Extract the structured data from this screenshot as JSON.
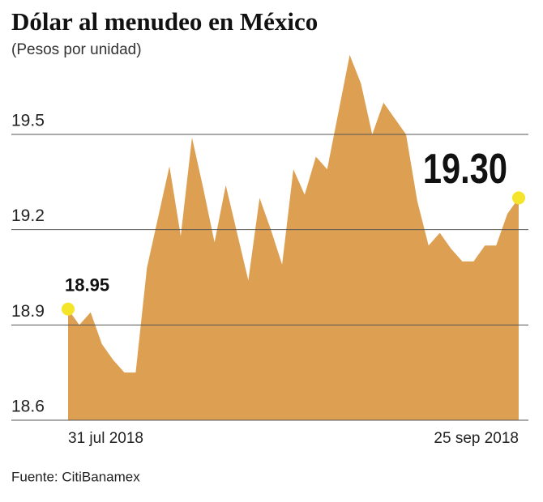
{
  "chart_data": {
    "type": "area",
    "title": "Dólar al menudeo en México",
    "subtitle": "(Pesos por unidad)",
    "categories": [
      "31 jul 2018",
      null,
      null,
      null,
      null,
      null,
      null,
      null,
      null,
      null,
      null,
      null,
      null,
      null,
      null,
      null,
      null,
      null,
      null,
      null,
      null,
      null,
      null,
      null,
      null,
      null,
      null,
      null,
      null,
      null,
      null,
      null,
      null,
      null,
      null,
      null,
      null,
      null,
      null,
      null,
      "25 sep 2018"
    ],
    "values": [
      18.95,
      18.9,
      18.94,
      18.84,
      18.79,
      18.75,
      18.75,
      19.08,
      19.24,
      19.4,
      19.18,
      19.49,
      19.33,
      19.16,
      19.34,
      19.19,
      19.04,
      19.3,
      19.2,
      19.09,
      19.39,
      19.31,
      19.43,
      19.39,
      19.57,
      19.75,
      19.66,
      19.5,
      19.6,
      19.55,
      19.5,
      19.29,
      19.15,
      19.19,
      19.14,
      19.1,
      19.1,
      19.15,
      19.15,
      19.25,
      19.3
    ],
    "value_labels": [
      "18.95",
      null,
      null,
      null,
      null,
      null,
      null,
      null,
      null,
      null,
      null,
      null,
      null,
      null,
      null,
      null,
      null,
      null,
      null,
      null,
      null,
      null,
      null,
      null,
      null,
      null,
      null,
      null,
      null,
      null,
      null,
      null,
      null,
      null,
      null,
      null,
      null,
      null,
      null,
      null,
      "19.30"
    ],
    "color": "#dd9f52",
    "highlight_color": "#f4e52a",
    "ylim": [
      18.6,
      19.76
    ],
    "yticks": [
      18.6,
      18.9,
      19.2,
      19.5
    ],
    "grid": true,
    "source": "Fuente: CitiBanamex"
  }
}
